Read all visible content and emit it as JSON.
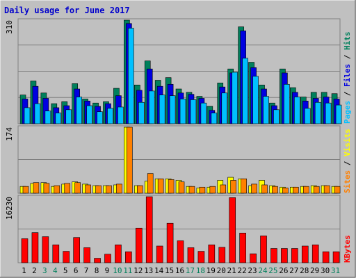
{
  "title": "Daily usage for June 2017",
  "colors": {
    "background": "#c0c0c0",
    "border": "#808080",
    "title": "#0000cc",
    "hits": "#00805c",
    "files": "#0000e0",
    "pages": "#00c0ff",
    "visits": "#ffff00",
    "sites": "#ff8000",
    "kbytes": "#ff0000",
    "weekday_label": "#000000",
    "weekend_label": "#00805c"
  },
  "chart_data": [
    {
      "type": "bar",
      "panel": "hits-files-pages",
      "ymax_label": "310",
      "ylim": [
        0,
        310
      ],
      "categories": [
        "1",
        "2",
        "3",
        "4",
        "5",
        "6",
        "7",
        "8",
        "9",
        "10",
        "11",
        "12",
        "13",
        "14",
        "15",
        "16",
        "17",
        "18",
        "19",
        "20",
        "21",
        "22",
        "23",
        "24",
        "25",
        "26",
        "27",
        "28",
        "29",
        "30",
        "31"
      ],
      "weekend_days": [
        3,
        4,
        10,
        11,
        17,
        18,
        24,
        25,
        31
      ],
      "series": [
        {
          "name": "Hits",
          "values": [
            86,
            128,
            92,
            60,
            66,
            120,
            74,
            62,
            66,
            106,
            310,
            116,
            188,
            130,
            138,
            104,
            94,
            82,
            52,
            122,
            164,
            290,
            184,
            116,
            62,
            164,
            108,
            80,
            94,
            94,
            90
          ]
        },
        {
          "name": "Files",
          "values": [
            74,
            112,
            76,
            48,
            54,
            104,
            68,
            52,
            60,
            84,
            300,
            100,
            164,
            112,
            118,
            92,
            88,
            76,
            40,
            110,
            152,
            278,
            168,
            104,
            54,
            152,
            94,
            68,
            76,
            80,
            74
          ]
        },
        {
          "name": "Pages",
          "values": [
            48,
            60,
            38,
            32,
            42,
            80,
            54,
            36,
            46,
            50,
            286,
            64,
            98,
            86,
            84,
            74,
            72,
            62,
            32,
            92,
            154,
            196,
            142,
            82,
            42,
            118,
            80,
            46,
            64,
            62,
            56
          ]
        }
      ]
    },
    {
      "type": "bar",
      "panel": "visits-sites",
      "ymax_label": "174",
      "ylim": [
        0,
        174
      ],
      "categories": [
        "1",
        "2",
        "3",
        "4",
        "5",
        "6",
        "7",
        "8",
        "9",
        "10",
        "11",
        "12",
        "13",
        "14",
        "15",
        "16",
        "17",
        "18",
        "19",
        "20",
        "21",
        "22",
        "23",
        "24",
        "25",
        "26",
        "27",
        "28",
        "29",
        "30",
        "31"
      ],
      "series": [
        {
          "name": "Visits",
          "values": [
            18,
            26,
            28,
            18,
            24,
            30,
            24,
            20,
            20,
            22,
            174,
            20,
            32,
            38,
            38,
            34,
            18,
            14,
            16,
            34,
            42,
            38,
            20,
            34,
            20,
            16,
            16,
            18,
            20,
            20,
            18
          ]
        },
        {
          "name": "Sites",
          "values": [
            18,
            28,
            26,
            20,
            26,
            28,
            22,
            20,
            20,
            24,
            174,
            20,
            52,
            38,
            36,
            30,
            18,
            16,
            18,
            22,
            34,
            38,
            24,
            22,
            18,
            14,
            16,
            18,
            18,
            20,
            18
          ]
        }
      ]
    },
    {
      "type": "bar",
      "panel": "kbytes",
      "ymax_label": "16230",
      "ylim": [
        0,
        16230
      ],
      "categories": [
        "1",
        "2",
        "3",
        "4",
        "5",
        "6",
        "7",
        "8",
        "9",
        "10",
        "11",
        "12",
        "13",
        "14",
        "15",
        "16",
        "17",
        "18",
        "19",
        "20",
        "21",
        "22",
        "23",
        "24",
        "25",
        "26",
        "27",
        "28",
        "29",
        "30",
        "31"
      ],
      "series": [
        {
          "name": "KBytes",
          "values": [
            5900,
            7400,
            6400,
            4400,
            2800,
            6200,
            3700,
            1100,
            2100,
            4400,
            2700,
            8500,
            16230,
            4100,
            9700,
            5400,
            3700,
            2800,
            4400,
            3800,
            16000,
            7300,
            2200,
            6600,
            3500,
            3500,
            3500,
            4100,
            4400,
            2700,
            2700
          ]
        }
      ]
    }
  ],
  "legend_right": {
    "top": [
      {
        "text": "Pages",
        "series": "pages"
      },
      {
        "text": " / ",
        "series": "separator"
      },
      {
        "text": "Files",
        "series": "files"
      },
      {
        "text": " / ",
        "series": "separator"
      },
      {
        "text": "Hits",
        "series": "hits"
      }
    ],
    "middle": [
      {
        "text": "Sites",
        "series": "sites"
      },
      {
        "text": " / ",
        "series": "separator"
      },
      {
        "text": "Visits",
        "series": "visits"
      }
    ],
    "bottom": [
      {
        "text": "KBytes",
        "series": "kbytes"
      }
    ]
  }
}
